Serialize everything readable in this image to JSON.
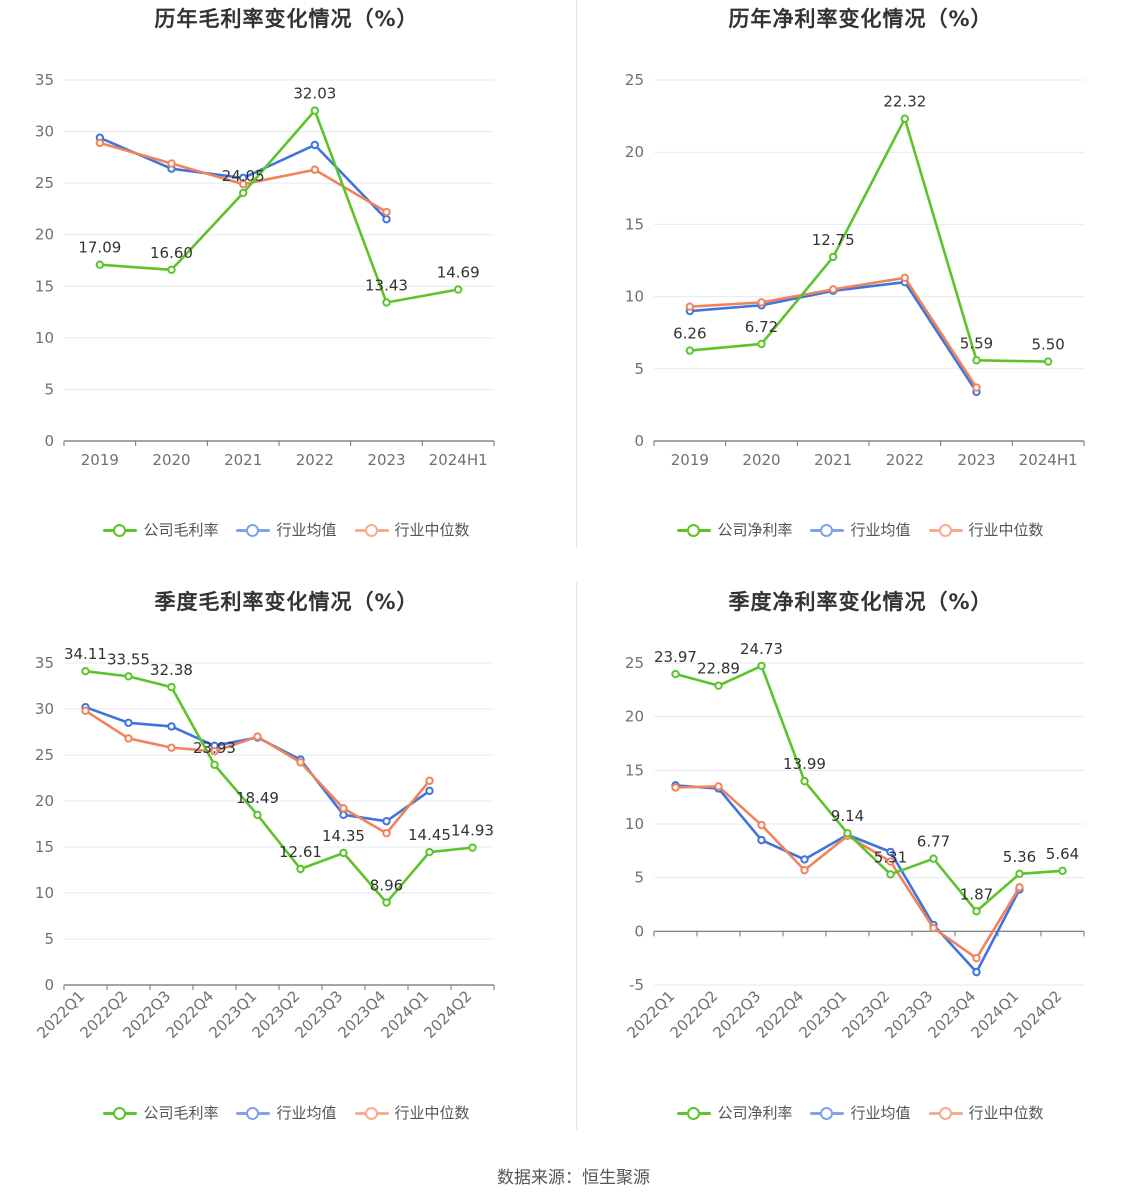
{
  "source": "数据来源：恒生聚源",
  "colors": {
    "company": "#5cc42a",
    "industry_avg": "#3f74de",
    "industry_median": "#f1835a",
    "grid": "#e6e9f0",
    "axis": "#6e7079"
  },
  "charts": [
    {
      "title": "历年毛利率变化情况（%）",
      "legend": [
        "公司毛利率",
        "行业均值",
        "行业中位数"
      ],
      "label_rotate": false
    },
    {
      "title": "历年净利率变化情况（%）",
      "legend": [
        "公司净利率",
        "行业均值",
        "行业中位数"
      ],
      "label_rotate": false
    },
    {
      "title": "季度毛利率变化情况（%）",
      "legend": [
        "公司毛利率",
        "行业均值",
        "行业中位数"
      ],
      "label_rotate": true
    },
    {
      "title": "季度净利率变化情况（%）",
      "legend": [
        "公司净利率",
        "行业均值",
        "行业中位数"
      ],
      "label_rotate": true
    }
  ],
  "chart_data": [
    {
      "type": "line",
      "title": "历年毛利率变化情况（%）",
      "categories": [
        "2019",
        "2020",
        "2021",
        "2022",
        "2023",
        "2024H1"
      ],
      "ylim": [
        0,
        35
      ],
      "yticks": [
        0,
        5,
        10,
        15,
        20,
        25,
        30,
        35
      ],
      "series": [
        {
          "name": "公司毛利率",
          "values": [
            17.09,
            16.6,
            24.05,
            32.03,
            13.43,
            14.69
          ],
          "labels": [
            "17.09",
            "16.60",
            "24.05",
            "32.03",
            "13.43",
            "14.69"
          ]
        },
        {
          "name": "行业均值",
          "values": [
            29.4,
            26.4,
            25.5,
            28.7,
            21.5,
            null
          ]
        },
        {
          "name": "行业中位数",
          "values": [
            28.9,
            26.9,
            24.9,
            26.3,
            22.2,
            null
          ]
        }
      ],
      "grid": true,
      "legend_position": "bottom"
    },
    {
      "type": "line",
      "title": "历年净利率变化情况（%）",
      "categories": [
        "2019",
        "2020",
        "2021",
        "2022",
        "2023",
        "2024H1"
      ],
      "ylim": [
        0,
        25
      ],
      "yticks": [
        0,
        5,
        10,
        15,
        20,
        25
      ],
      "series": [
        {
          "name": "公司净利率",
          "values": [
            6.26,
            6.72,
            12.75,
            22.32,
            5.59,
            5.5
          ],
          "labels": [
            "6.26",
            "6.72",
            "12.75",
            "22.32",
            "5.59",
            "5.50"
          ]
        },
        {
          "name": "行业均值",
          "values": [
            9.0,
            9.4,
            10.4,
            11.0,
            3.4,
            null
          ]
        },
        {
          "name": "行业中位数",
          "values": [
            9.3,
            9.6,
            10.5,
            11.3,
            3.7,
            null
          ]
        }
      ],
      "grid": true,
      "legend_position": "bottom"
    },
    {
      "type": "line",
      "title": "季度毛利率变化情况（%）",
      "categories": [
        "2022Q1",
        "2022Q2",
        "2022Q3",
        "2022Q4",
        "2023Q1",
        "2023Q2",
        "2023Q3",
        "2023Q4",
        "2024Q1",
        "2024Q2"
      ],
      "ylim": [
        0,
        35
      ],
      "yticks": [
        0,
        5,
        10,
        15,
        20,
        25,
        30,
        35
      ],
      "series": [
        {
          "name": "公司毛利率",
          "values": [
            34.11,
            33.55,
            32.38,
            23.93,
            18.49,
            12.61,
            14.35,
            8.96,
            14.45,
            14.93
          ],
          "labels": [
            "34.11",
            "33.55",
            "32.38",
            "23.93",
            "18.49",
            "12.61",
            "14.35",
            "8.96",
            "14.45",
            "14.93"
          ]
        },
        {
          "name": "行业均值",
          "values": [
            30.2,
            28.5,
            28.1,
            26.0,
            26.9,
            24.5,
            18.5,
            17.8,
            21.1,
            null
          ]
        },
        {
          "name": "行业中位数",
          "values": [
            29.8,
            26.8,
            25.8,
            25.4,
            27.0,
            24.2,
            19.2,
            16.5,
            22.2,
            null
          ]
        }
      ],
      "grid": true,
      "legend_position": "bottom"
    },
    {
      "type": "line",
      "title": "季度净利率变化情况（%）",
      "categories": [
        "2022Q1",
        "2022Q2",
        "2022Q3",
        "2022Q4",
        "2023Q1",
        "2023Q2",
        "2023Q3",
        "2023Q4",
        "2024Q1",
        "2024Q2"
      ],
      "ylim": [
        -5,
        25
      ],
      "yticks": [
        -5,
        0,
        5,
        10,
        15,
        20,
        25
      ],
      "series": [
        {
          "name": "公司净利率",
          "values": [
            23.97,
            22.89,
            24.73,
            13.99,
            9.14,
            5.31,
            6.77,
            1.87,
            5.36,
            5.64
          ],
          "labels": [
            "23.97",
            "22.89",
            "24.73",
            "13.99",
            "9.14",
            "5.31",
            "6.77",
            "1.87",
            "5.36",
            "5.64"
          ]
        },
        {
          "name": "行业均值",
          "values": [
            13.6,
            13.3,
            8.5,
            6.7,
            9.0,
            7.4,
            0.6,
            -3.8,
            3.9,
            null
          ]
        },
        {
          "name": "行业中位数",
          "values": [
            13.4,
            13.5,
            9.9,
            5.7,
            8.9,
            6.5,
            0.3,
            -2.5,
            4.1,
            null
          ]
        }
      ],
      "grid": true,
      "legend_position": "bottom"
    }
  ]
}
